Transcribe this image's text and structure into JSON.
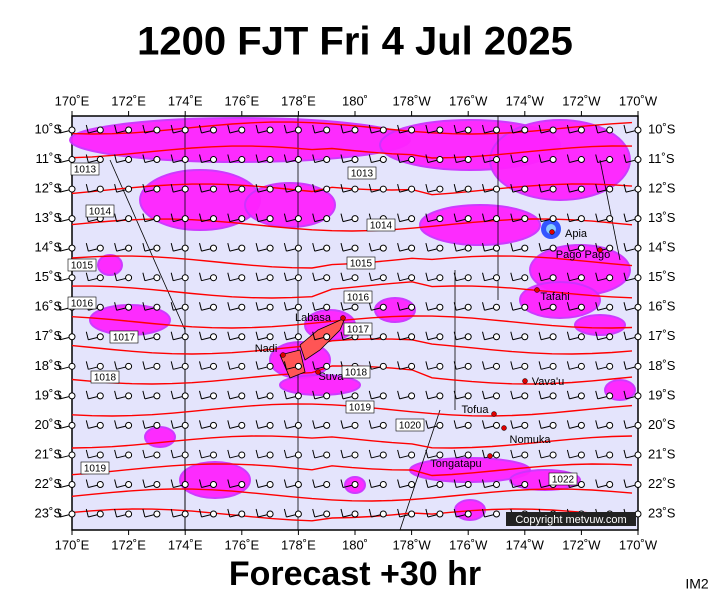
{
  "header": {
    "title": "1200 FJT Fri 4 Jul 2025"
  },
  "footer": {
    "forecast": "Forecast +30 hr",
    "code": "IM2"
  },
  "map": {
    "lon_labels": [
      "170˚E",
      "172˚E",
      "174˚E",
      "176˚E",
      "178˚E",
      "180˚",
      "178˚W",
      "176˚W",
      "174˚W",
      "172˚W",
      "170˚W"
    ],
    "lat_labels": [
      "10˚S",
      "11˚S",
      "12˚S",
      "13˚S",
      "14˚S",
      "15˚S",
      "16˚S",
      "17˚S",
      "18˚S",
      "19˚S",
      "20˚S",
      "21˚S",
      "22˚S",
      "23˚S"
    ],
    "places": [
      "Labasa",
      "Nadi",
      "Suva",
      "Apia",
      "Pago Pago",
      "Tafahi",
      "Vava'u",
      "Tofua",
      "Nomuka",
      "Tongatapu"
    ],
    "isobar_labels": [
      "1013",
      "1013",
      "1014",
      "1014",
      "1015",
      "1015",
      "1016",
      "1016",
      "1017",
      "1017",
      "1018",
      "1018",
      "1019",
      "1020",
      "1019",
      "1022"
    ],
    "copyright": "Copyright metvuw.com"
  }
}
